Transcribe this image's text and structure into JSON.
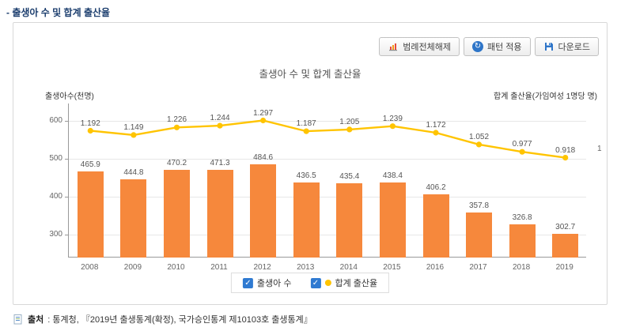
{
  "page": {
    "heading": "- 출생아 수 및 합계 출산율"
  },
  "toolbar": {
    "buttons": [
      {
        "label": "범례전체해제",
        "icon": "mini-chart-icon"
      },
      {
        "label": "패턴 적용",
        "icon": "refresh-icon"
      },
      {
        "label": "다운로드",
        "icon": "save-icon"
      }
    ]
  },
  "chart_data": {
    "type": "bar+line",
    "title": "출생아 수 및 합계 출산율",
    "left_axis_label": "출생아수(천명)",
    "right_axis_label": "합계 출산율(가임여성 1명당 명)",
    "categories": [
      "2008",
      "2009",
      "2010",
      "2011",
      "2012",
      "2013",
      "2014",
      "2015",
      "2016",
      "2017",
      "2018",
      "2019"
    ],
    "series": [
      {
        "name": "출생아 수",
        "type": "bar",
        "color": "#f6883c",
        "values": [
          465.9,
          444.8,
          470.2,
          471.3,
          484.6,
          436.5,
          435.4,
          438.4,
          406.2,
          357.8,
          326.8,
          302.7
        ]
      },
      {
        "name": "합계 출산율",
        "type": "line",
        "color": "#ffc400",
        "values": [
          1.192,
          1.149,
          1.226,
          1.244,
          1.297,
          1.187,
          1.205,
          1.239,
          1.172,
          1.052,
          0.977,
          0.918
        ]
      }
    ],
    "left_axis_ticks": [
      300,
      400,
      500,
      600
    ],
    "right_axis_ticks": [
      1
    ],
    "left_axis_range": [
      240,
      645
    ],
    "right_axis_range": [
      -0.1,
      1.47
    ],
    "grid": true,
    "legend_position": "bottom"
  },
  "source": {
    "prefix": "출처",
    "text": " : 통계청, 『2019년 출생통계(확정), 국가승인통계 제10103호 출생통계』"
  }
}
